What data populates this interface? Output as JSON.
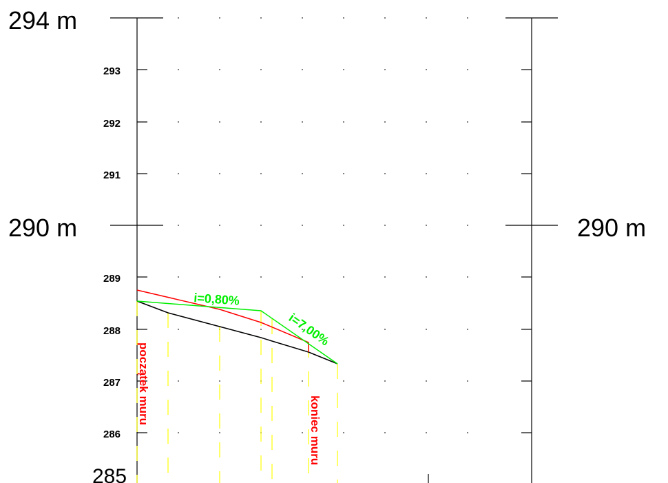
{
  "labels": {
    "top_left": "294 m",
    "mid_left": "290 m",
    "mid_right": "290 m",
    "bottom_left": "285"
  },
  "ticks": [
    "293",
    "292",
    "291",
    "289",
    "288",
    "287",
    "286"
  ],
  "annotations": {
    "slope_1": "i=0,80%",
    "slope_2": "i=7,00%",
    "wall_start": "początek muru",
    "wall_end": "koniec muru"
  },
  "colors": {
    "axis": "#000000",
    "terrain": "#000000",
    "wall": "#ff0000",
    "design": "#00ee00",
    "stations": "#ffff00",
    "grid_dots": "#555555"
  }
}
